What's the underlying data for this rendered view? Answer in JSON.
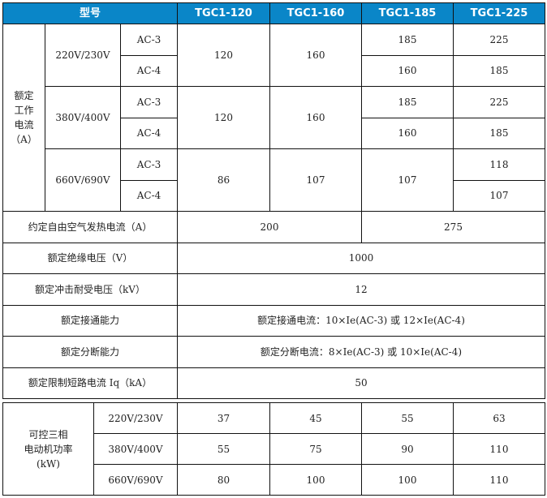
{
  "header": {
    "model_label": "型号",
    "models": [
      "TGC1-120",
      "TGC1-160",
      "TGC1-185",
      "TGC1-225"
    ]
  },
  "rated_current": {
    "label": "额定工作电流（A）",
    "label_lines": [
      "额定",
      "工作",
      "电流",
      "（A）"
    ],
    "groups": [
      {
        "voltage": "220V/230V",
        "ac3": "AC-3",
        "ac4": "AC-4",
        "m120": "120",
        "m160": "160",
        "m185": [
          "185",
          "160"
        ],
        "m225": [
          "225",
          "185"
        ]
      },
      {
        "voltage": "380V/400V",
        "ac3": "AC-3",
        "ac4": "AC-4",
        "m120": "120",
        "m160": "160",
        "m185": [
          "185",
          "160"
        ],
        "m225": [
          "225",
          "185"
        ]
      },
      {
        "voltage": "660V/690V",
        "ac3": "AC-3",
        "ac4": "AC-4",
        "m120": "86",
        "m160": "107",
        "m185": "107",
        "m225": [
          "118",
          "107"
        ]
      }
    ]
  },
  "thermal": {
    "label": "约定自由空气发热电流（A）",
    "v1": "200",
    "v2": "275"
  },
  "rows": [
    {
      "label": "额定绝缘电压（V）",
      "value": "1000"
    },
    {
      "label": "额定冲击耐受电压（kV）",
      "value": "12"
    },
    {
      "label": "额定接通能力",
      "value": "额定接通电流：10×Ie(AC-3) 或 12×Ie(AC-4)"
    },
    {
      "label": "额定分断能力",
      "value": "额定分断电流：8×Ie(AC-3) 或 10×Ie(AC-4)"
    },
    {
      "label": "额定限制短路电流 Iq（kA）",
      "value": "50"
    }
  ],
  "motor": {
    "label_lines": [
      "可控三相",
      "电动机功率",
      "(kW)"
    ],
    "rows": [
      {
        "voltage": "220V/230V",
        "values": [
          "37",
          "45",
          "55",
          "63"
        ]
      },
      {
        "voltage": "380V/400V",
        "values": [
          "55",
          "75",
          "90",
          "110"
        ]
      },
      {
        "voltage": "660V/690V",
        "values": [
          "80",
          "100",
          "100",
          "110"
        ]
      }
    ]
  },
  "colors": {
    "header_bg": "#0a86c8",
    "header_text": "#ffffff",
    "border": "#111111"
  }
}
